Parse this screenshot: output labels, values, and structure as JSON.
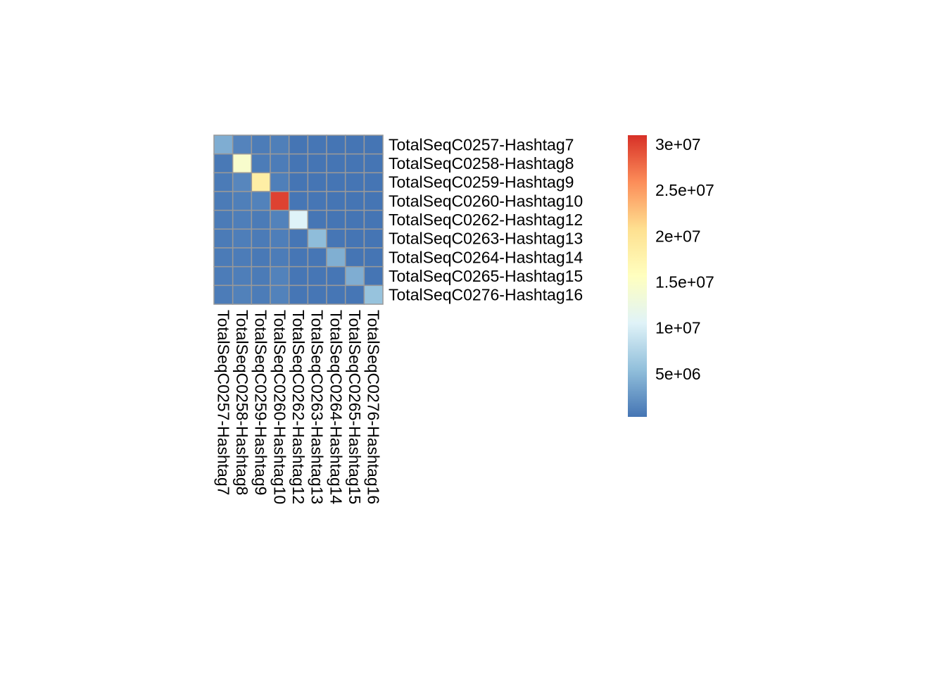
{
  "chart_data": {
    "type": "heatmap",
    "title": "",
    "row_labels": [
      "TotalSeqC0257-Hashtag7",
      "TotalSeqC0258-Hashtag8",
      "TotalSeqC0259-Hashtag9",
      "TotalSeqC0260-Hashtag10",
      "TotalSeqC0262-Hashtag12",
      "TotalSeqC0263-Hashtag13",
      "TotalSeqC0264-Hashtag14",
      "TotalSeqC0265-Hashtag15",
      "TotalSeqC0276-Hashtag16"
    ],
    "col_labels": [
      "TotalSeqC0257-Hashtag7",
      "TotalSeqC0258-Hashtag8",
      "TotalSeqC0259-Hashtag9",
      "TotalSeqC0260-Hashtag10",
      "TotalSeqC0262-Hashtag12",
      "TotalSeqC0263-Hashtag13",
      "TotalSeqC0264-Hashtag14",
      "TotalSeqC0265-Hashtag15",
      "TotalSeqC0276-Hashtag16"
    ],
    "values": [
      [
        4200000,
        1300000,
        800000,
        1000000,
        300000,
        400000,
        300000,
        300000,
        300000
      ],
      [
        600000,
        14500000,
        800000,
        800000,
        300000,
        300000,
        300000,
        300000,
        300000
      ],
      [
        700000,
        1500000,
        18500000,
        1000000,
        300000,
        300000,
        300000,
        300000,
        300000
      ],
      [
        700000,
        1000000,
        1200000,
        30000000,
        400000,
        400000,
        300000,
        300000,
        300000
      ],
      [
        700000,
        900000,
        700000,
        1200000,
        10500000,
        400000,
        300000,
        300000,
        300000
      ],
      [
        700000,
        900000,
        700000,
        900000,
        400000,
        5300000,
        400000,
        300000,
        300000
      ],
      [
        700000,
        800000,
        600000,
        800000,
        400000,
        400000,
        4300000,
        300000,
        300000
      ],
      [
        800000,
        900000,
        700000,
        1200000,
        400000,
        400000,
        400000,
        4200000,
        300000
      ],
      [
        800000,
        1100000,
        800000,
        1200000,
        400000,
        400000,
        400000,
        400000,
        5800000
      ]
    ],
    "value_range": [
      300000,
      31000000
    ],
    "colorbar": {
      "ticks": [
        5000000,
        10000000,
        15000000,
        20000000,
        25000000,
        30000000
      ],
      "tick_labels": [
        "5e+06",
        "1e+07",
        "1.5e+07",
        "2e+07",
        "2.5e+07",
        "3e+07"
      ],
      "colors": [
        "#4575B4",
        "#91BFDB",
        "#E0F3F8",
        "#FFFFBF",
        "#FEE090",
        "#FC8D59",
        "#D73027"
      ]
    },
    "cell_border_color": "#999999",
    "grid": true,
    "legend_position": "right"
  }
}
